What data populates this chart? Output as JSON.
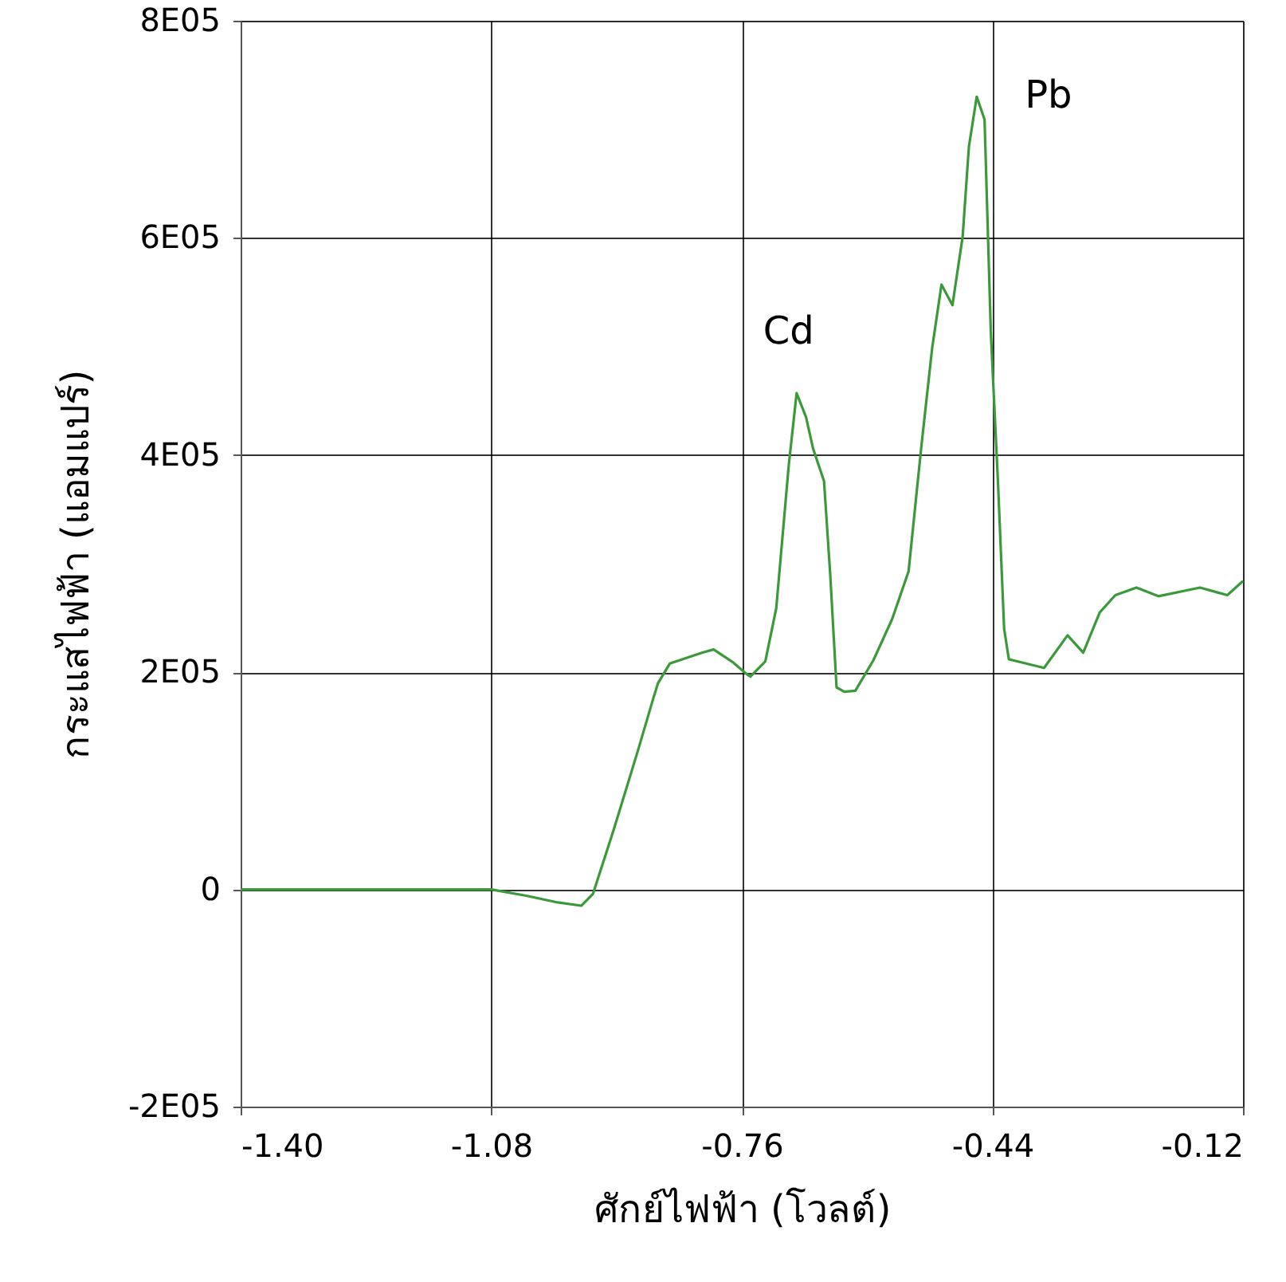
{
  "chart_data": {
    "type": "line",
    "xlabel": "ศักย์ไฟฟ้า (โวลต์)",
    "ylabel": "กระแสไฟฟ้า (แอมแปร์)",
    "x": [
      -1.4,
      -1.239,
      -1.08,
      -1.034,
      -0.995,
      -0.965,
      -0.95,
      -0.924,
      -0.893,
      -0.873,
      -0.867,
      -0.852,
      -0.811,
      -0.796,
      -0.771,
      -0.755,
      -0.749,
      -0.73,
      -0.716,
      -0.7,
      -0.69,
      -0.678,
      -0.669,
      -0.655,
      -0.647,
      -0.639,
      -0.629,
      -0.615,
      -0.592,
      -0.568,
      -0.547,
      -0.531,
      -0.517,
      -0.505,
      -0.491,
      -0.478,
      -0.47,
      -0.46,
      -0.45,
      -0.442,
      -0.433,
      -0.425,
      -0.419,
      -0.374,
      -0.344,
      -0.324,
      -0.303,
      -0.283,
      -0.256,
      -0.228,
      -0.175,
      -0.14,
      -0.12
    ],
    "series": [
      {
        "color": "#3a9a3a",
        "values": [
          0,
          0,
          0,
          -6000,
          -12000,
          -15000,
          -4000,
          54000,
          127000,
          176000,
          190000,
          208000,
          218000,
          221000,
          209000,
          199000,
          196000,
          210000,
          259000,
          391000,
          457000,
          435000,
          406000,
          376000,
          289000,
          186000,
          182000,
          183000,
          211000,
          249000,
          293000,
          406000,
          498000,
          557000,
          538000,
          601000,
          684000,
          730000,
          709000,
          513000,
          377000,
          240000,
          212000,
          204000,
          234000,
          218000,
          255000,
          271000,
          278000,
          270000,
          278000,
          271000,
          284000
        ]
      }
    ],
    "xlim": [
      -1.4,
      -0.12
    ],
    "xticks": [
      {
        "value": -1.4,
        "label": "-1.40"
      },
      {
        "value": -1.08,
        "label": "-1.08"
      },
      {
        "value": -0.76,
        "label": "-0.76"
      },
      {
        "value": -0.44,
        "label": "-0.44"
      },
      {
        "value": -0.12,
        "label": "-0.12"
      }
    ],
    "ylim": [
      -200000,
      800000
    ],
    "yticks": [
      {
        "value": -200000,
        "label": "-2E05"
      },
      0,
      {
        "value": 200000,
        "label": "2E05"
      },
      {
        "value": 400000,
        "label": "4E05"
      },
      {
        "value": 600000,
        "label": "6E05"
      },
      {
        "value": 800000,
        "label": "8E05"
      }
    ],
    "annotations": [
      {
        "text": "Cd",
        "x": -0.69,
        "y": 457000
      },
      {
        "text": "Pb",
        "x": -0.46,
        "y": 730000
      }
    ],
    "grid": true,
    "marker": "none",
    "line_style": "solid"
  }
}
